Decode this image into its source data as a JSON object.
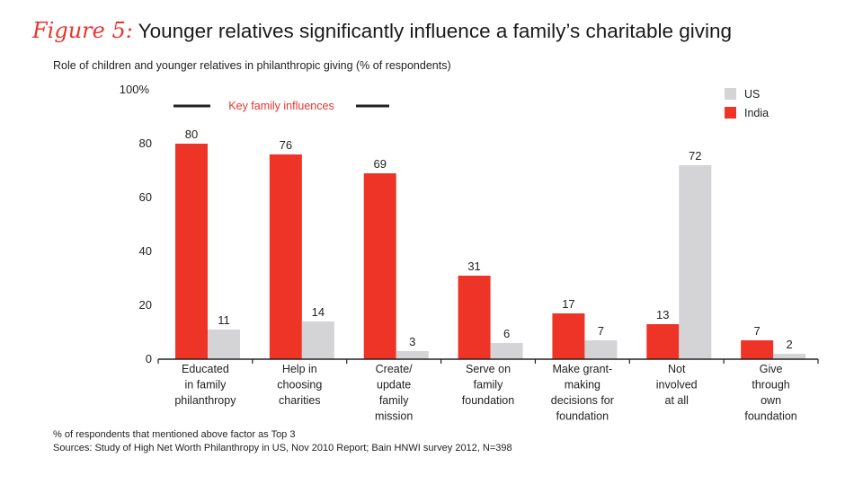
{
  "title": {
    "figure_label": "Figure 5:",
    "text": "Younger relatives significantly influence a family’s charitable giving"
  },
  "subtitle": "Role of children and younger relatives in philanthropic giving (% of respondents)",
  "colors": {
    "india": "#ee3427",
    "us": "#d4d4d6",
    "axis": "#222222",
    "bracket": "#222222",
    "annotation": "#e8352f"
  },
  "chart_data": {
    "type": "bar",
    "title": "Younger relatives significantly influence a family’s charitable giving",
    "ylabel": "% of respondents",
    "ylim": [
      0,
      100
    ],
    "yticks": [
      0,
      20,
      40,
      60,
      80
    ],
    "ytick_labels": [
      "0",
      "20",
      "40",
      "60",
      "80"
    ],
    "ytop_label": "100%",
    "grid": false,
    "legend_position": "top-right",
    "categories": [
      [
        "Educated",
        "in family",
        "philanthropy"
      ],
      [
        "Help in",
        "choosing",
        "charities"
      ],
      [
        "Create/",
        "update",
        "family",
        "mission"
      ],
      [
        "Serve on",
        "family",
        "foundation"
      ],
      [
        "Make grant-",
        "making",
        "decisions for",
        "foundation"
      ],
      [
        "Not",
        "involved",
        "at all"
      ],
      [
        "Give",
        "through",
        "own",
        "foundation"
      ]
    ],
    "series": [
      {
        "name": "India",
        "values": [
          80,
          76,
          69,
          31,
          17,
          13,
          7
        ]
      },
      {
        "name": "US",
        "values": [
          11,
          14,
          3,
          6,
          7,
          72,
          2
        ]
      }
    ],
    "legend": [
      "US",
      "India"
    ],
    "annotation": "Key family influences"
  },
  "footnotes": [
    "% of respondents that mentioned above factor as Top 3",
    "Sources: Study of High Net Worth Philanthropy in US, Nov 2010 Report; Bain HNWI survey 2012, N=398"
  ]
}
